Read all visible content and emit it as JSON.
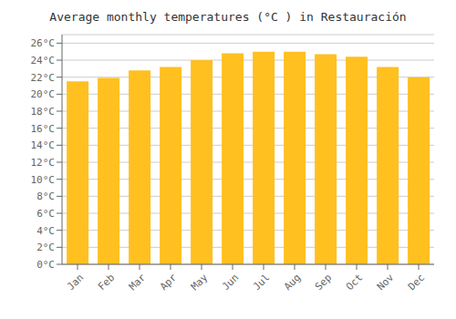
{
  "chart_data": {
    "type": "bar",
    "title": "Average monthly temperatures (°C ) in Restauración",
    "categories": [
      "Jan",
      "Feb",
      "Mar",
      "Apr",
      "May",
      "Jun",
      "Jul",
      "Aug",
      "Sep",
      "Oct",
      "Nov",
      "Dec"
    ],
    "values": [
      21.5,
      21.9,
      22.8,
      23.2,
      24.0,
      24.8,
      25.0,
      25.0,
      24.7,
      24.4,
      23.2,
      22.0
    ],
    "color": "#FFC020",
    "ylim": [
      0,
      27
    ],
    "yticks": [
      {
        "value": 0,
        "label": "0°C"
      },
      {
        "value": 2,
        "label": "2°C"
      },
      {
        "value": 4,
        "label": "4°C"
      },
      {
        "value": 6,
        "label": "6°C"
      },
      {
        "value": 8,
        "label": "8°C"
      },
      {
        "value": 10,
        "label": "10°C"
      },
      {
        "value": 12,
        "label": "12°C"
      },
      {
        "value": 14,
        "label": "14°C"
      },
      {
        "value": 16,
        "label": "16°C"
      },
      {
        "value": 18,
        "label": "18°C"
      },
      {
        "value": 20,
        "label": "20°C"
      },
      {
        "value": 22,
        "label": "22°C"
      },
      {
        "value": 24,
        "label": "24°C"
      },
      {
        "value": 26,
        "label": "26°C"
      }
    ],
    "grid": true
  }
}
